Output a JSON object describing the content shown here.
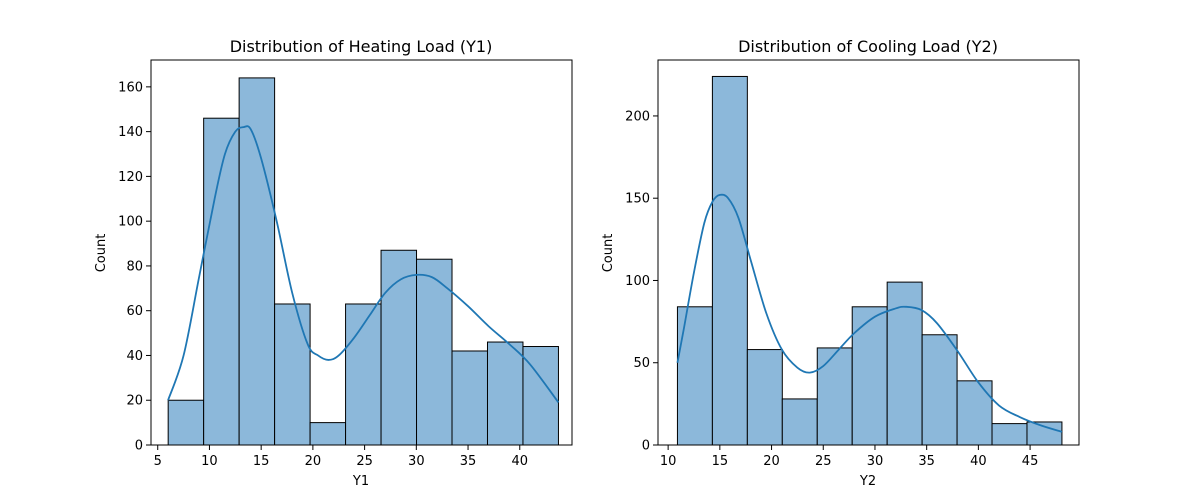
{
  "chart_data": [
    {
      "type": "bar",
      "title": "Distribution of Heating Load (Y1)",
      "xlabel": "Y1",
      "ylabel": "Count",
      "xlim": [
        4.35,
        45.05
      ],
      "ylim": [
        0,
        172
      ],
      "xticks": [
        5,
        10,
        15,
        20,
        25,
        30,
        35,
        40
      ],
      "yticks": [
        0,
        20,
        40,
        60,
        80,
        100,
        120,
        140,
        160
      ],
      "bin_edges": [
        6.01,
        9.44,
        12.87,
        16.3,
        19.73,
        23.16,
        26.59,
        30.02,
        33.45,
        36.88,
        40.31,
        43.74
      ],
      "values": [
        20,
        146,
        164,
        63,
        10,
        63,
        87,
        83,
        42,
        46,
        44
      ],
      "bar_color": "#8cb8da",
      "kde_color": "#1f77b4",
      "kde": {
        "x": [
          6.0,
          7.5,
          9.0,
          10.5,
          11.5,
          12.5,
          13.3,
          14.0,
          15.0,
          16.5,
          18.0,
          19.5,
          20.5,
          21.5,
          22.5,
          24.0,
          25.5,
          27.0,
          28.5,
          30.0,
          31.5,
          33.0,
          35.0,
          37.0,
          39.0,
          41.0,
          43.74
        ],
        "y": [
          20,
          40,
          75,
          110,
          130,
          140,
          142,
          141,
          128,
          100,
          68,
          45,
          40,
          38,
          40,
          48,
          58,
          68,
          74,
          76,
          75,
          70,
          62,
          53,
          45,
          36,
          19
        ]
      }
    },
    {
      "type": "bar",
      "title": "Distribution of Cooling Load (Y2)",
      "xlabel": "Y2",
      "ylabel": "Count",
      "xlim": [
        9.02,
        49.73
      ],
      "ylim": [
        0,
        234
      ],
      "xticks": [
        10,
        15,
        20,
        25,
        30,
        35,
        40,
        45
      ],
      "yticks": [
        0,
        50,
        100,
        150,
        200
      ],
      "bin_edges": [
        10.9,
        14.28,
        17.66,
        21.04,
        24.42,
        27.8,
        31.18,
        34.56,
        37.94,
        41.32,
        44.7,
        48.08
      ],
      "values": [
        84,
        224,
        58,
        28,
        59,
        84,
        99,
        67,
        39,
        13,
        14
      ],
      "bar_color": "#8cb8da",
      "kde_color": "#1f77b4",
      "kde": {
        "x": [
          10.9,
          11.5,
          12.5,
          13.5,
          14.3,
          15.0,
          15.8,
          16.8,
          18.0,
          19.5,
          21.0,
          22.5,
          23.7,
          25.0,
          26.5,
          28.0,
          30.0,
          32.0,
          33.0,
          34.5,
          36.0,
          38.0,
          40.0,
          42.0,
          44.0,
          46.0,
          48.08
        ],
        "y": [
          50,
          70,
          105,
          135,
          148,
          152,
          150,
          138,
          112,
          80,
          58,
          47,
          44,
          48,
          58,
          68,
          78,
          83,
          84,
          82,
          74,
          57,
          38,
          24,
          17,
          12,
          8
        ]
      }
    }
  ]
}
